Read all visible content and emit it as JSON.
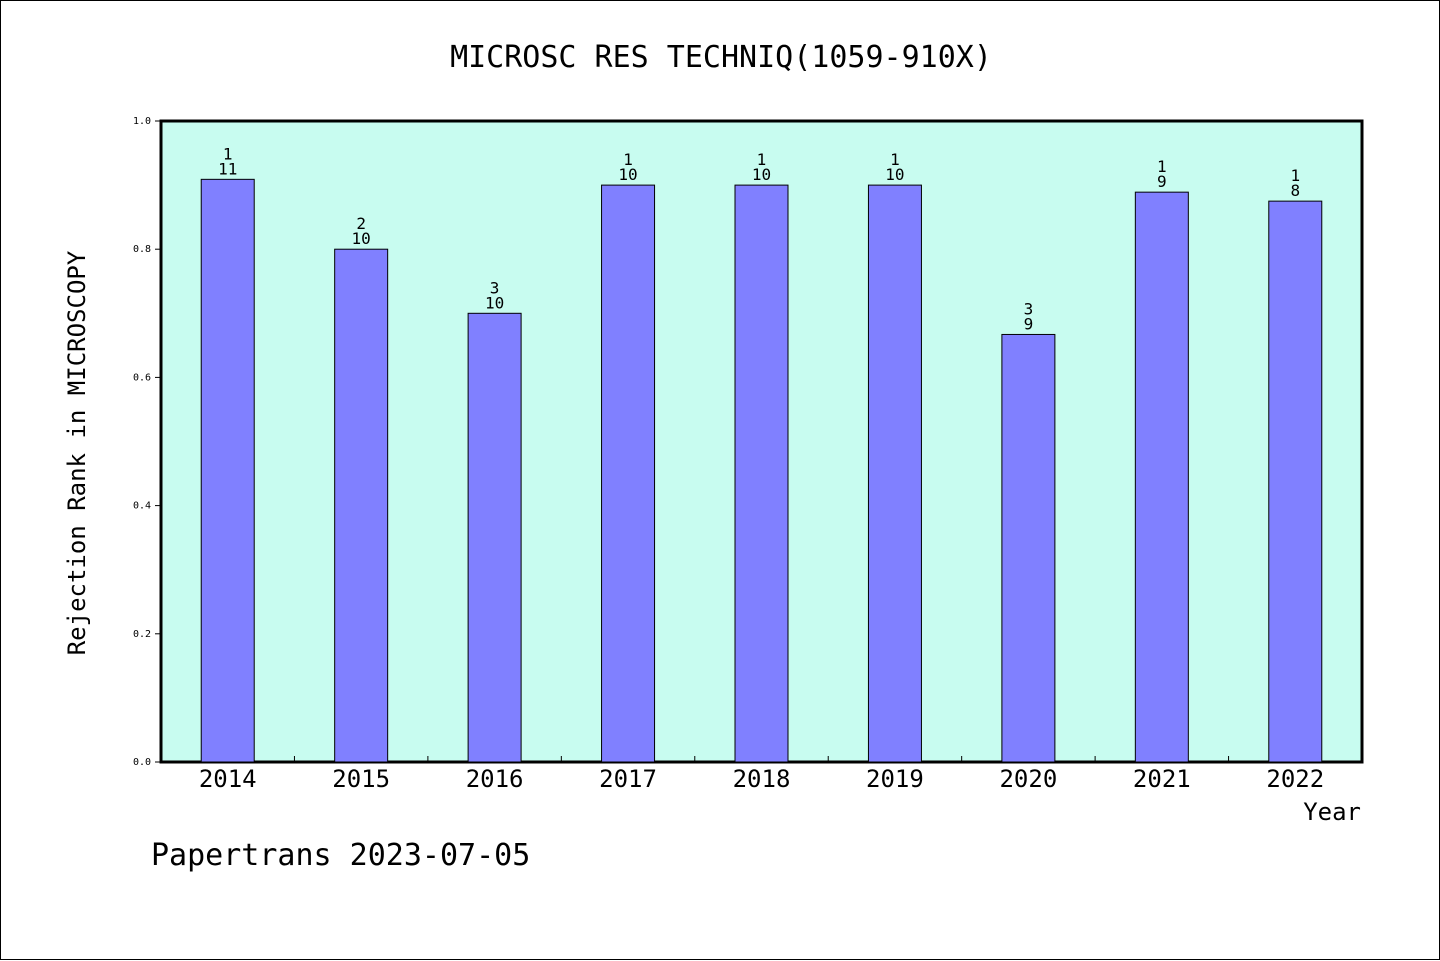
{
  "chart_data": {
    "type": "bar",
    "title": "MICROSC RES TECHNIQ(1059-910X)",
    "xlabel": "Year",
    "ylabel": "Rejection Rank in MICROSCOPY",
    "categories": [
      "2014",
      "2015",
      "2016",
      "2017",
      "2018",
      "2019",
      "2020",
      "2021",
      "2022"
    ],
    "values": [
      0.909,
      0.8,
      0.7,
      0.9,
      0.9,
      0.9,
      0.667,
      0.889,
      0.875
    ],
    "label_top": [
      "1",
      "2",
      "3",
      "1",
      "1",
      "1",
      "3",
      "1",
      "1"
    ],
    "label_bottom": [
      "11",
      "10",
      "10",
      "10",
      "10",
      "10",
      "9",
      "9",
      "8"
    ],
    "ylim": [
      0,
      1.0
    ],
    "yticks": [
      "0.0",
      "0.2",
      "0.4",
      "0.6",
      "0.8",
      "1.0"
    ],
    "grid": false,
    "colors": {
      "plot_background": "#c8fcf0",
      "bar_fill": "#8080ff",
      "bar_stroke": "#000000"
    }
  },
  "footer": "Papertrans 2023-07-05"
}
